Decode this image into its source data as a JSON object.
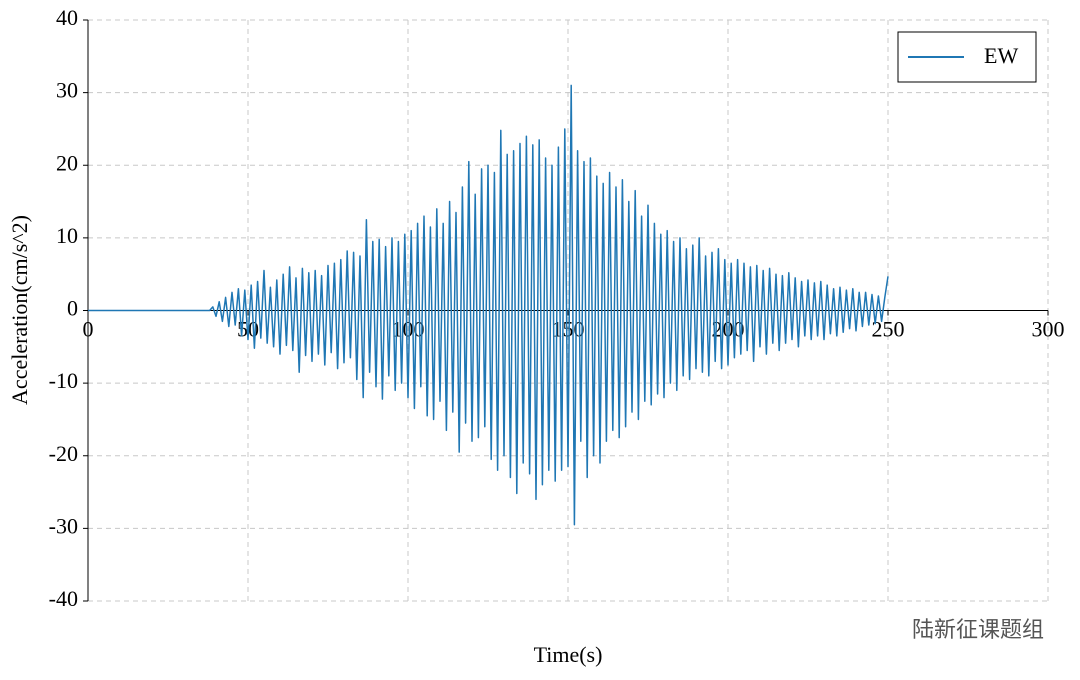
{
  "chart_data": {
    "type": "line",
    "xlabel": "Time(s)",
    "ylabel": "Acceleration(cm/s^2)",
    "xlim": [
      0,
      300
    ],
    "xticks": [
      0,
      50,
      100,
      150,
      200,
      250,
      300
    ],
    "ylim": [
      -40,
      40
    ],
    "yticks": [
      -40,
      -30,
      -20,
      -10,
      0,
      10,
      20,
      30,
      40
    ],
    "grid": true,
    "legend": "upper right",
    "watermark": "陆新征课题组",
    "x": [
      0,
      38,
      39,
      40,
      41,
      42,
      43,
      44,
      45,
      46,
      47,
      48,
      49,
      50,
      51,
      52,
      53,
      54,
      55,
      56,
      57,
      58,
      59,
      60,
      61,
      62,
      63,
      64,
      65,
      66,
      67,
      68,
      69,
      70,
      71,
      72,
      73,
      74,
      75,
      76,
      77,
      78,
      79,
      80,
      81,
      82,
      83,
      84,
      85,
      86,
      87,
      88,
      89,
      90,
      91,
      92,
      93,
      94,
      95,
      96,
      97,
      98,
      99,
      100,
      101,
      102,
      103,
      104,
      105,
      106,
      107,
      108,
      109,
      110,
      111,
      112,
      113,
      114,
      115,
      116,
      117,
      118,
      119,
      120,
      121,
      122,
      123,
      124,
      125,
      126,
      127,
      128,
      129,
      130,
      131,
      132,
      133,
      134,
      135,
      136,
      137,
      138,
      139,
      140,
      141,
      142,
      143,
      144,
      145,
      146,
      147,
      148,
      149,
      150,
      151,
      152,
      153,
      154,
      155,
      156,
      157,
      158,
      159,
      160,
      161,
      162,
      163,
      164,
      165,
      166,
      167,
      168,
      169,
      170,
      171,
      172,
      173,
      174,
      175,
      176,
      177,
      178,
      179,
      180,
      181,
      182,
      183,
      184,
      185,
      186,
      187,
      188,
      189,
      190,
      191,
      192,
      193,
      194,
      195,
      196,
      197,
      198,
      199,
      200,
      201,
      202,
      203,
      204,
      205,
      206,
      207,
      208,
      209,
      210,
      211,
      212,
      213,
      214,
      215,
      216,
      217,
      218,
      219,
      220,
      221,
      222,
      223,
      224,
      225,
      226,
      227,
      228,
      229,
      230,
      231,
      232,
      233,
      234,
      235,
      236,
      237,
      238,
      239,
      240,
      241,
      242,
      243,
      244,
      245,
      246,
      247,
      248,
      249,
      250
    ],
    "series": [
      {
        "name": "EW",
        "color": "#1f77b4",
        "values": [
          0,
          0,
          0.5,
          -0.8,
          1.2,
          -1.5,
          1.8,
          -2.2,
          2.5,
          -2.0,
          3.0,
          -3.5,
          2.8,
          -4.0,
          3.5,
          -5.2,
          4.0,
          -3.8,
          5.5,
          -4.5,
          3.2,
          -5.0,
          4.2,
          -6.0,
          5.0,
          -4.8,
          6.0,
          -5.5,
          4.5,
          -8.5,
          5.8,
          -6.2,
          5.2,
          -7.0,
          5.5,
          -6.0,
          4.8,
          -7.5,
          6.2,
          -5.8,
          6.5,
          -8.0,
          7.0,
          -7.2,
          8.2,
          -6.5,
          8.0,
          -9.5,
          7.5,
          -12.0,
          12.5,
          -8.5,
          9.5,
          -10.5,
          9.8,
          -12.2,
          8.8,
          -9.0,
          10.0,
          -11.0,
          9.5,
          -10.0,
          10.5,
          -12.0,
          11.0,
          -13.5,
          12.0,
          -10.5,
          13.0,
          -14.5,
          11.5,
          -15.0,
          14.0,
          -12.5,
          12.0,
          -16.5,
          15.0,
          -14.0,
          13.5,
          -19.5,
          17.0,
          -15.5,
          20.5,
          -18.0,
          16.0,
          -17.5,
          19.5,
          -16.0,
          20.0,
          -20.5,
          19.0,
          -22.0,
          24.8,
          -20.0,
          21.5,
          -23.0,
          22.0,
          -25.2,
          23.0,
          -21.0,
          24.0,
          -22.5,
          22.8,
          -26.0,
          23.5,
          -24.0,
          21.0,
          -22.0,
          20.0,
          -23.5,
          22.5,
          -22.0,
          25.0,
          -21.5,
          31.0,
          -29.5,
          22.0,
          -18.0,
          20.5,
          -23.0,
          21.0,
          -20.0,
          18.5,
          -21.0,
          17.5,
          -18.0,
          19.0,
          -16.5,
          17.0,
          -17.5,
          18.0,
          -16.0,
          15.0,
          -14.0,
          16.5,
          -15.0,
          13.0,
          -12.5,
          14.5,
          -13.0,
          12.0,
          -11.5,
          10.5,
          -12.0,
          11.0,
          -10.0,
          9.5,
          -11.0,
          10.0,
          -9.0,
          8.5,
          -9.5,
          9.0,
          -8.0,
          10.0,
          -8.5,
          7.5,
          -9.0,
          8.0,
          -7.0,
          8.5,
          -8.0,
          7.0,
          -7.5,
          6.5,
          -6.5,
          7.0,
          -6.0,
          6.5,
          -5.5,
          6.0,
          -7.0,
          6.2,
          -5.0,
          5.5,
          -6.0,
          5.8,
          -4.5,
          5.0,
          -5.5,
          4.8,
          -4.5,
          5.2,
          -4.0,
          4.5,
          -5.0,
          4.0,
          -3.5,
          4.2,
          -4.0,
          3.8,
          -3.5,
          4.0,
          -4.0,
          3.5,
          -3.2,
          3.0,
          -3.5,
          3.2,
          -3.0,
          2.8,
          -2.5,
          3.0,
          -2.8,
          2.5,
          -2.2,
          2.5,
          -2.0,
          2.2,
          -1.8,
          2.0,
          -1.5,
          1.8,
          4.7
        ]
      }
    ]
  }
}
